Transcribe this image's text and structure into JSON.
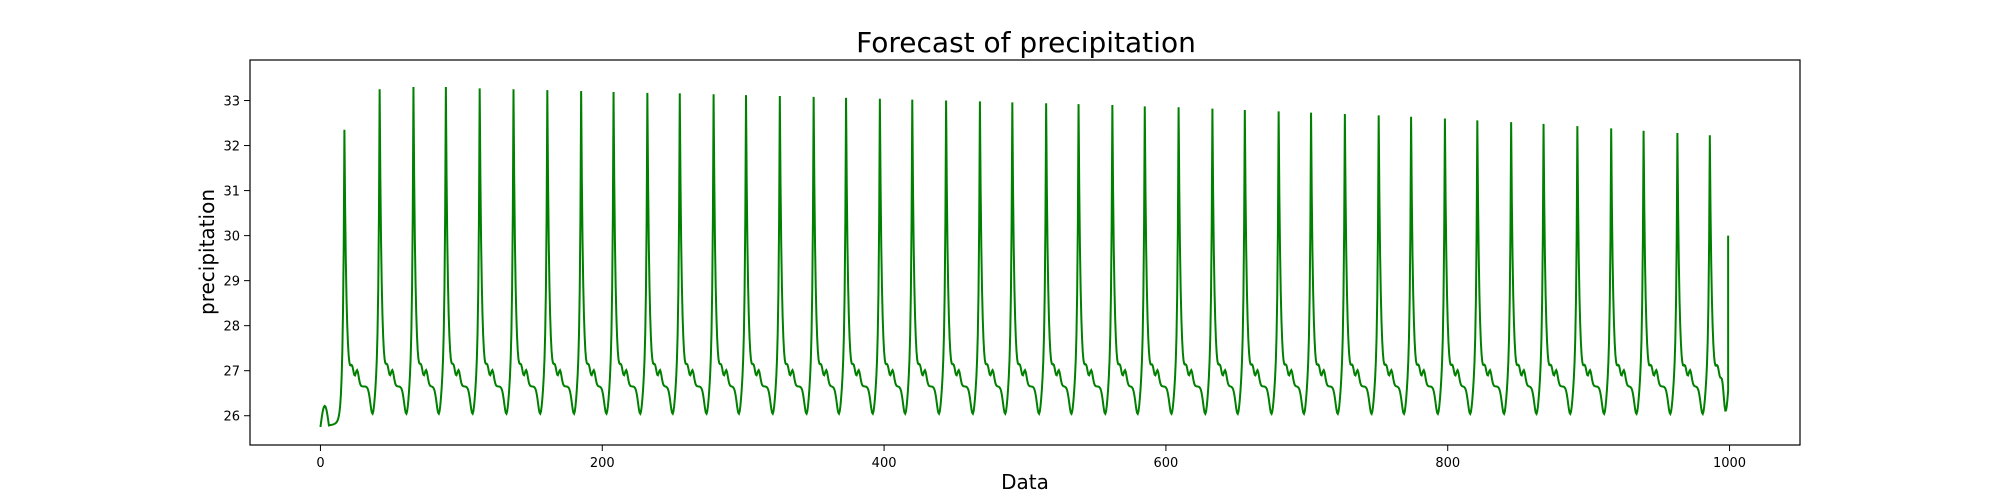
{
  "chart_data": {
    "type": "line",
    "title": "Forecast of precipitation",
    "xlabel": "Data",
    "ylabel": "precipitation",
    "xlim": [
      -50,
      1050
    ],
    "ylim": [
      25.35,
      33.9
    ],
    "xticks": [
      0,
      200,
      400,
      600,
      800,
      1000
    ],
    "yticks": [
      26,
      27,
      28,
      29,
      30,
      31,
      32,
      33
    ],
    "grid": false,
    "line_color": "#008000",
    "series": [
      {
        "x_start": 0,
        "x_end": 999,
        "first_value": 25.75,
        "last_value": 30.0,
        "first_peak_x": 17,
        "first_peak_value": 32.6,
        "peak_period": 23.6,
        "peaks_x": [
          17,
          42,
          66,
          89,
          113,
          137,
          161,
          185,
          208,
          232,
          255,
          279,
          302,
          326,
          350,
          373,
          397,
          420,
          444,
          468,
          491,
          515,
          538,
          562,
          585,
          609,
          633,
          656,
          680,
          703,
          727,
          751,
          774,
          798,
          821,
          845,
          868,
          892,
          916,
          939,
          963,
          986
        ],
        "peak_values": [
          32.6,
          33.5,
          33.55,
          33.55,
          33.52,
          33.5,
          33.48,
          33.46,
          33.44,
          33.42,
          33.41,
          33.39,
          33.37,
          33.35,
          33.33,
          33.31,
          33.29,
          33.27,
          33.25,
          33.23,
          33.21,
          33.19,
          33.17,
          33.15,
          33.12,
          33.1,
          33.07,
          33.04,
          33.01,
          32.98,
          32.95,
          32.92,
          32.89,
          32.85,
          32.81,
          32.77,
          32.73,
          32.68,
          32.63,
          32.58,
          32.53,
          32.48
        ],
        "trough_value": 26.2,
        "shoulder_value": 26.9
      }
    ]
  }
}
